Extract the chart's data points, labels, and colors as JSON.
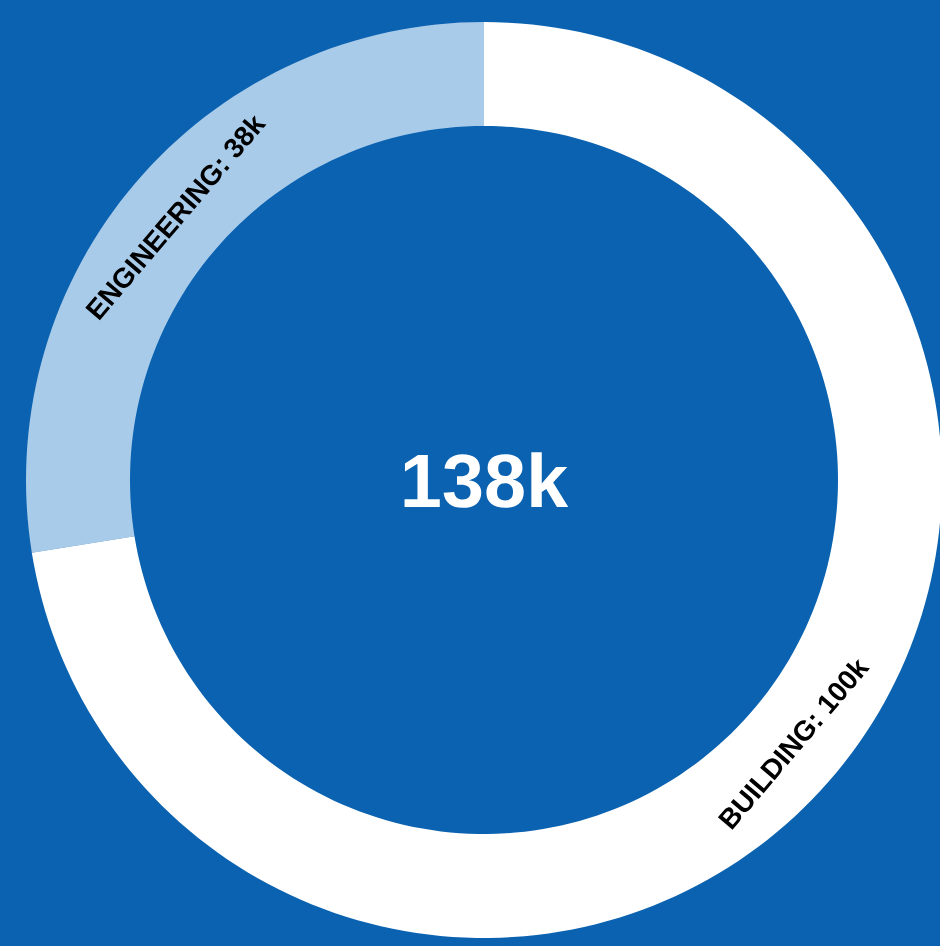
{
  "chart_data": {
    "type": "donut",
    "categories": [
      "ENGINEERING: 38k",
      "BUILDING: 100k"
    ],
    "values": [
      38,
      100
    ],
    "colors": [
      "#a9cbea",
      "#ffffff"
    ],
    "annotations": [
      "138k"
    ]
  }
}
